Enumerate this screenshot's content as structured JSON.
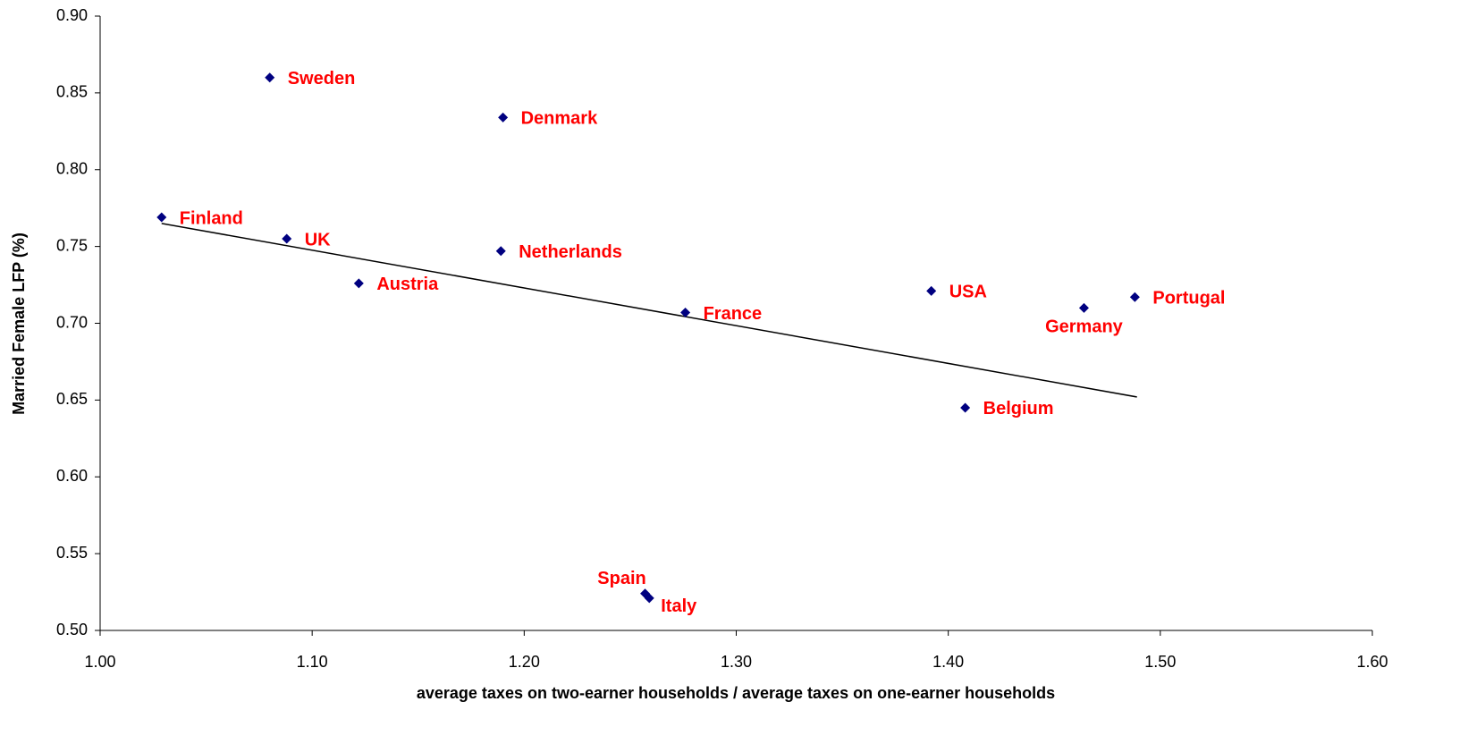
{
  "chart_data": {
    "type": "scatter",
    "x_label": "average taxes on two-earner households / average taxes on one-earner households",
    "y_label": "Married Female LFP (%)",
    "labels": [
      "Sweden",
      "Denmark",
      "Finland",
      "UK",
      "Netherlands",
      "Austria",
      "France",
      "USA",
      "Germany",
      "Portugal",
      "Belgium",
      "Spain",
      "Italy"
    ],
    "x": [
      1.08,
      1.19,
      1.029,
      1.088,
      1.189,
      1.122,
      1.276,
      1.392,
      1.464,
      1.488,
      1.408,
      1.257,
      1.259
    ],
    "y": [
      0.86,
      0.834,
      0.769,
      0.755,
      0.747,
      0.726,
      0.707,
      0.721,
      0.71,
      0.717,
      0.645,
      0.524,
      0.521
    ],
    "color": "#000080",
    "label_color": "#ff0000",
    "trendline": {
      "x": [
        1.029,
        1.489
      ],
      "y": [
        0.765,
        0.652
      ],
      "color": "#000000"
    },
    "xlim": [
      1.0,
      1.6
    ],
    "xticks": [
      {
        "value": 1.0,
        "label": "1.00"
      },
      {
        "value": 1.1,
        "label": "1.10"
      },
      {
        "value": 1.2,
        "label": "1.20"
      },
      {
        "value": 1.3,
        "label": "1.30"
      },
      {
        "value": 1.4,
        "label": "1.40"
      },
      {
        "value": 1.5,
        "label": "1.50"
      },
      {
        "value": 1.6,
        "label": "1.60"
      }
    ],
    "ylim": [
      0.5,
      0.9
    ],
    "yticks": [
      {
        "value": 0.5,
        "label": "0.50"
      },
      {
        "value": 0.55,
        "label": "0.55"
      },
      {
        "value": 0.6,
        "label": "0.60"
      },
      {
        "value": 0.65,
        "label": "0.65"
      },
      {
        "value": 0.7,
        "label": "0.70"
      },
      {
        "value": 0.75,
        "label": "0.75"
      },
      {
        "value": 0.8,
        "label": "0.80"
      },
      {
        "value": 0.85,
        "label": "0.85"
      },
      {
        "value": 0.9,
        "label": "0.90"
      }
    ],
    "grid": false
  }
}
